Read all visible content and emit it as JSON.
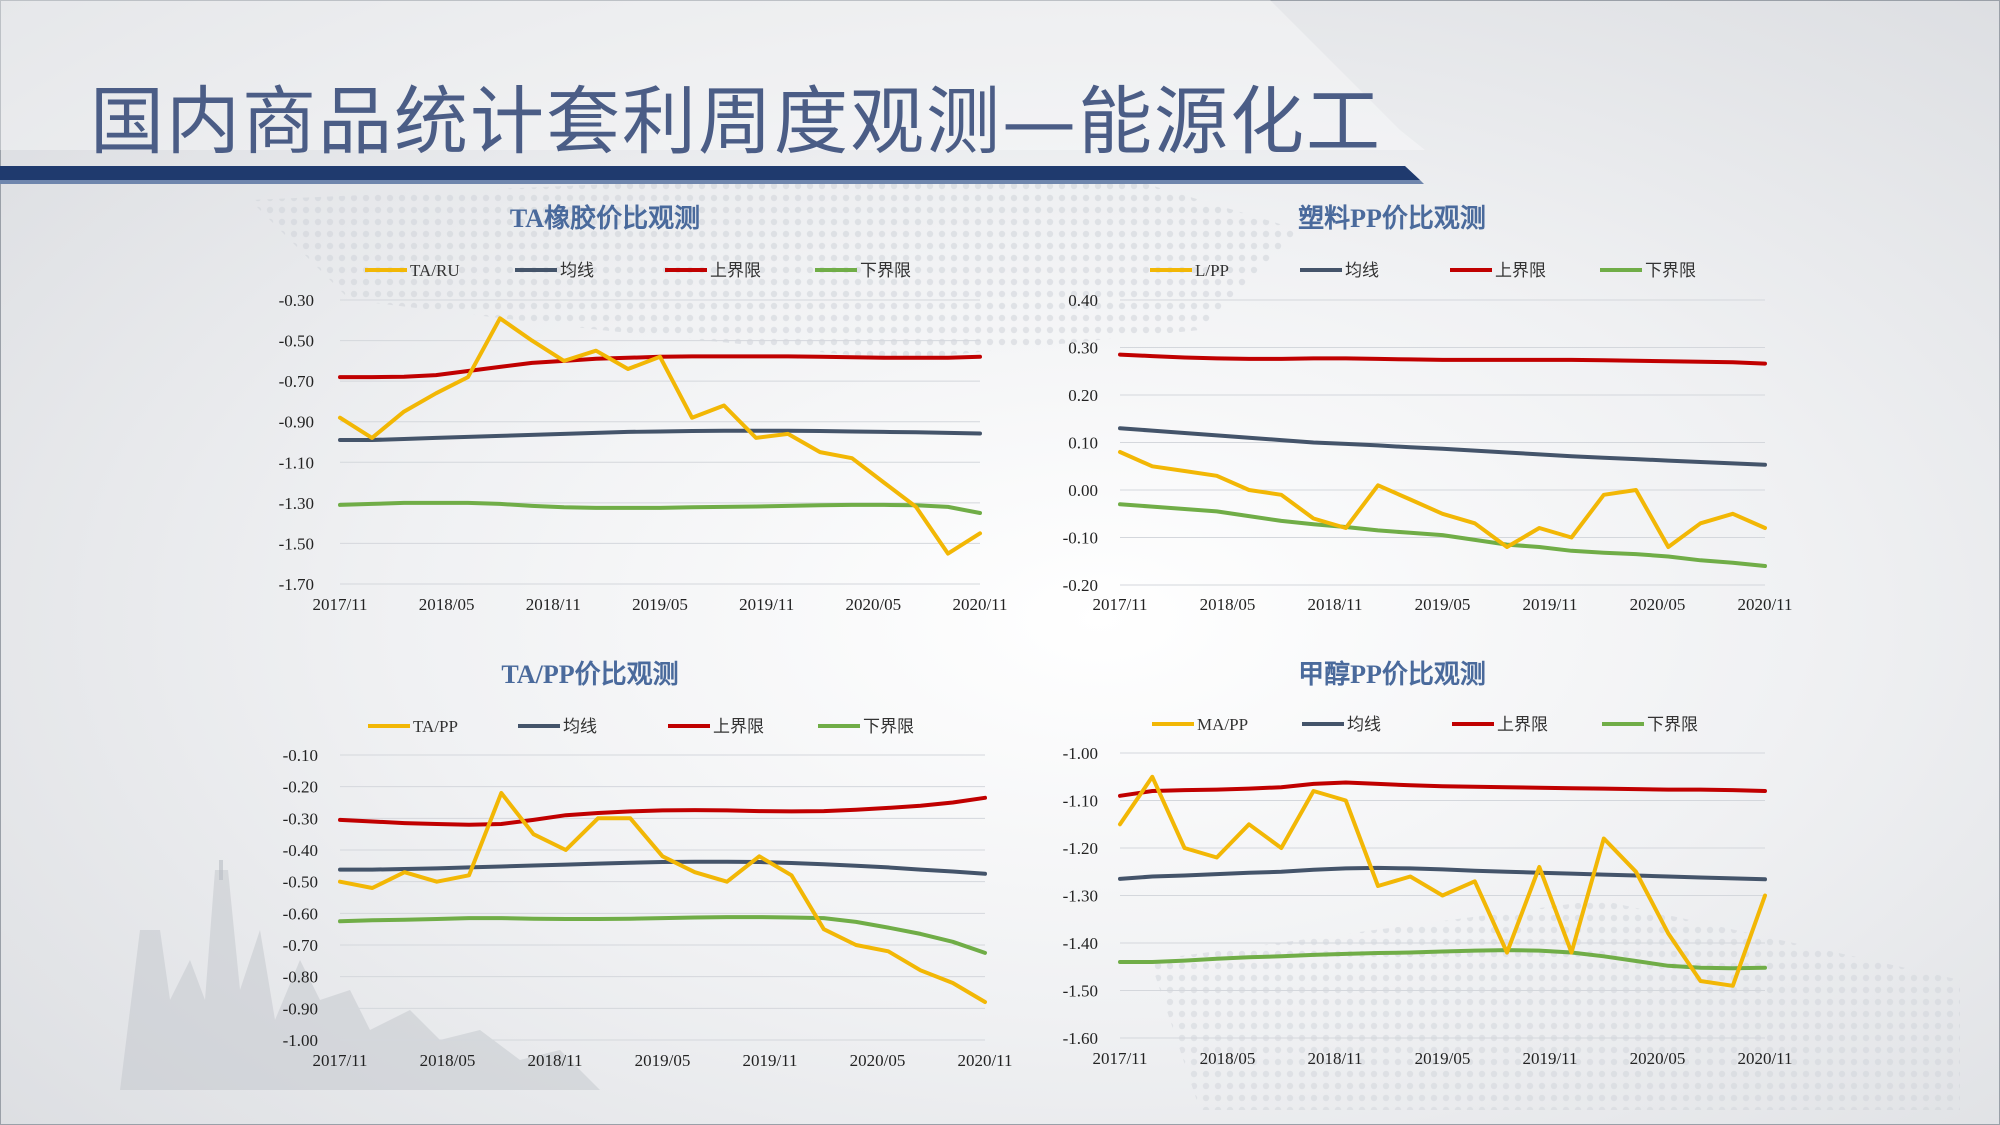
{
  "page": {
    "title": "国内商品统计套利周度观测—能源化工"
  },
  "colors": {
    "series": "#f2b705",
    "mean": "#44546a",
    "upper": "#c00000",
    "lower": "#70ad47",
    "title_text": "#4a6a9c",
    "header_band": "#1f3a6e"
  },
  "chart_data": [
    {
      "type": "line",
      "title": "TA橡胶价比观测",
      "legend": [
        "TA/RU",
        "均线",
        "上界限",
        "下界限"
      ],
      "ylim": [
        -1.7,
        -0.3
      ],
      "yticks": [
        "-0.30",
        "-0.50",
        "-0.70",
        "-0.90",
        "-1.10",
        "-1.30",
        "-1.50",
        "-1.70"
      ],
      "xticks": [
        "2017/11",
        "2018/05",
        "2018/11",
        "2019/05",
        "2019/11",
        "2020/05",
        "2020/11"
      ],
      "x": [
        0,
        0.05,
        0.1,
        0.15,
        0.2,
        0.25,
        0.3,
        0.35,
        0.4,
        0.45,
        0.5,
        0.55,
        0.6,
        0.65,
        0.7,
        0.75,
        0.8,
        0.85,
        0.9,
        0.95,
        1
      ],
      "series": [
        {
          "name": "TA/RU",
          "values": [
            -0.88,
            -0.98,
            -0.85,
            -0.76,
            -0.68,
            -0.39,
            -0.5,
            -0.6,
            -0.55,
            -0.64,
            -0.58,
            -0.88,
            -0.82,
            -0.98,
            -0.96,
            -1.05,
            -1.08,
            -1.2,
            -1.32,
            -1.55,
            -1.45
          ]
        },
        {
          "name": "均线",
          "values": [
            -0.99,
            -0.99,
            -0.985,
            -0.98,
            -0.975,
            -0.97,
            -0.965,
            -0.96,
            -0.955,
            -0.95,
            -0.948,
            -0.946,
            -0.945,
            -0.945,
            -0.945,
            -0.946,
            -0.948,
            -0.95,
            -0.952,
            -0.955,
            -0.958
          ]
        },
        {
          "name": "上界限",
          "values": [
            -0.68,
            -0.68,
            -0.678,
            -0.67,
            -0.65,
            -0.63,
            -0.61,
            -0.6,
            -0.59,
            -0.585,
            -0.58,
            -0.578,
            -0.578,
            -0.578,
            -0.578,
            -0.58,
            -0.582,
            -0.585,
            -0.585,
            -0.585,
            -0.58
          ]
        },
        {
          "name": "下界限",
          "values": [
            -1.31,
            -1.305,
            -1.3,
            -1.3,
            -1.3,
            -1.305,
            -1.315,
            -1.322,
            -1.325,
            -1.325,
            -1.325,
            -1.322,
            -1.32,
            -1.318,
            -1.315,
            -1.312,
            -1.31,
            -1.31,
            -1.312,
            -1.32,
            -1.35
          ]
        }
      ]
    },
    {
      "type": "line",
      "title": "塑料PP价比观测",
      "legend": [
        "L/PP",
        "均线",
        "上界限",
        "下界限"
      ],
      "ylim": [
        -0.2,
        0.4
      ],
      "yticks": [
        "0.40",
        "0.30",
        "0.20",
        "0.10",
        "0.00",
        "-0.10",
        "-0.20"
      ],
      "xticks": [
        "2017/11",
        "2018/05",
        "2018/11",
        "2019/05",
        "2019/11",
        "2020/05",
        "2020/11"
      ],
      "x": [
        0,
        0.05,
        0.1,
        0.15,
        0.2,
        0.25,
        0.3,
        0.35,
        0.4,
        0.45,
        0.5,
        0.55,
        0.6,
        0.65,
        0.7,
        0.75,
        0.8,
        0.85,
        0.9,
        0.95,
        1
      ],
      "series": [
        {
          "name": "L/PP",
          "values": [
            0.08,
            0.05,
            0.04,
            0.03,
            0.0,
            -0.01,
            -0.06,
            -0.08,
            0.01,
            -0.02,
            -0.05,
            -0.07,
            -0.12,
            -0.08,
            -0.1,
            -0.01,
            0.0,
            -0.12,
            -0.07,
            -0.05,
            -0.08
          ]
        },
        {
          "name": "均线",
          "values": [
            0.13,
            0.125,
            0.12,
            0.115,
            0.11,
            0.105,
            0.1,
            0.097,
            0.094,
            0.09,
            0.087,
            0.083,
            0.079,
            0.075,
            0.071,
            0.068,
            0.065,
            0.062,
            0.059,
            0.056,
            0.053
          ]
        },
        {
          "name": "上界限",
          "values": [
            0.285,
            0.282,
            0.279,
            0.277,
            0.276,
            0.276,
            0.277,
            0.277,
            0.276,
            0.275,
            0.274,
            0.274,
            0.274,
            0.274,
            0.274,
            0.273,
            0.272,
            0.271,
            0.27,
            0.269,
            0.266
          ]
        },
        {
          "name": "下界限",
          "values": [
            -0.03,
            -0.035,
            -0.04,
            -0.045,
            -0.055,
            -0.065,
            -0.072,
            -0.078,
            -0.085,
            -0.09,
            -0.095,
            -0.105,
            -0.115,
            -0.12,
            -0.128,
            -0.132,
            -0.135,
            -0.14,
            -0.148,
            -0.153,
            -0.16
          ]
        }
      ]
    },
    {
      "type": "line",
      "title": "TA/PP价比观测",
      "legend": [
        "TA/PP",
        "均线",
        "上界限",
        "下界限"
      ],
      "ylim": [
        -1.0,
        -0.1
      ],
      "yticks": [
        "-0.10",
        "-0.20",
        "-0.30",
        "-0.40",
        "-0.50",
        "-0.60",
        "-0.70",
        "-0.80",
        "-0.90",
        "-1.00"
      ],
      "xticks": [
        "2017/11",
        "2018/05",
        "2018/11",
        "2019/05",
        "2019/11",
        "2020/05",
        "2020/11"
      ],
      "x": [
        0,
        0.05,
        0.1,
        0.15,
        0.2,
        0.25,
        0.3,
        0.35,
        0.4,
        0.45,
        0.5,
        0.55,
        0.6,
        0.65,
        0.7,
        0.75,
        0.8,
        0.85,
        0.9,
        0.95,
        1
      ],
      "series": [
        {
          "name": "TA/PP",
          "values": [
            -0.5,
            -0.52,
            -0.47,
            -0.5,
            -0.48,
            -0.22,
            -0.35,
            -0.4,
            -0.3,
            -0.3,
            -0.42,
            -0.47,
            -0.5,
            -0.42,
            -0.48,
            -0.65,
            -0.7,
            -0.72,
            -0.78,
            -0.82,
            -0.88
          ]
        },
        {
          "name": "均线",
          "values": [
            -0.462,
            -0.462,
            -0.46,
            -0.458,
            -0.455,
            -0.452,
            -0.449,
            -0.446,
            -0.443,
            -0.44,
            -0.438,
            -0.437,
            -0.437,
            -0.438,
            -0.441,
            -0.445,
            -0.45,
            -0.455,
            -0.462,
            -0.468,
            -0.475
          ]
        },
        {
          "name": "上界限",
          "values": [
            -0.305,
            -0.31,
            -0.315,
            -0.318,
            -0.32,
            -0.318,
            -0.305,
            -0.29,
            -0.283,
            -0.278,
            -0.275,
            -0.274,
            -0.275,
            -0.277,
            -0.278,
            -0.277,
            -0.273,
            -0.267,
            -0.26,
            -0.25,
            -0.235
          ]
        },
        {
          "name": "下界限",
          "values": [
            -0.625,
            -0.622,
            -0.62,
            -0.618,
            -0.615,
            -0.615,
            -0.617,
            -0.618,
            -0.618,
            -0.617,
            -0.615,
            -0.613,
            -0.612,
            -0.612,
            -0.613,
            -0.615,
            -0.627,
            -0.645,
            -0.665,
            -0.69,
            -0.725
          ]
        }
      ]
    },
    {
      "type": "line",
      "title": "甲醇PP价比观测",
      "legend": [
        "MA/PP",
        "均线",
        "上界限",
        "下界限"
      ],
      "ylim": [
        -1.6,
        -1.0
      ],
      "yticks": [
        "-1.00",
        "-1.10",
        "-1.20",
        "-1.30",
        "-1.40",
        "-1.50",
        "-1.60"
      ],
      "xticks": [
        "2017/11",
        "2018/05",
        "2018/11",
        "2019/05",
        "2019/11",
        "2020/05",
        "2020/11"
      ],
      "x": [
        0,
        0.05,
        0.1,
        0.15,
        0.2,
        0.25,
        0.3,
        0.35,
        0.4,
        0.45,
        0.5,
        0.55,
        0.6,
        0.65,
        0.7,
        0.75,
        0.8,
        0.85,
        0.9,
        0.95,
        1
      ],
      "series": [
        {
          "name": "MA/PP",
          "values": [
            -1.15,
            -1.05,
            -1.2,
            -1.22,
            -1.15,
            -1.2,
            -1.08,
            -1.1,
            -1.28,
            -1.26,
            -1.3,
            -1.27,
            -1.42,
            -1.24,
            -1.42,
            -1.18,
            -1.25,
            -1.38,
            -1.48,
            -1.49,
            -1.3
          ]
        },
        {
          "name": "均线",
          "values": [
            -1.265,
            -1.26,
            -1.258,
            -1.255,
            -1.252,
            -1.25,
            -1.246,
            -1.243,
            -1.242,
            -1.243,
            -1.245,
            -1.248,
            -1.25,
            -1.252,
            -1.254,
            -1.256,
            -1.258,
            -1.26,
            -1.262,
            -1.264,
            -1.266
          ]
        },
        {
          "name": "上界限",
          "values": [
            -1.09,
            -1.08,
            -1.078,
            -1.077,
            -1.075,
            -1.072,
            -1.065,
            -1.062,
            -1.065,
            -1.068,
            -1.07,
            -1.071,
            -1.072,
            -1.073,
            -1.074,
            -1.075,
            -1.076,
            -1.077,
            -1.077,
            -1.078,
            -1.08
          ]
        },
        {
          "name": "下界限",
          "values": [
            -1.44,
            -1.44,
            -1.437,
            -1.433,
            -1.43,
            -1.428,
            -1.425,
            -1.423,
            -1.421,
            -1.42,
            -1.418,
            -1.416,
            -1.415,
            -1.416,
            -1.42,
            -1.428,
            -1.438,
            -1.448,
            -1.452,
            -1.453,
            -1.452
          ]
        }
      ]
    }
  ]
}
